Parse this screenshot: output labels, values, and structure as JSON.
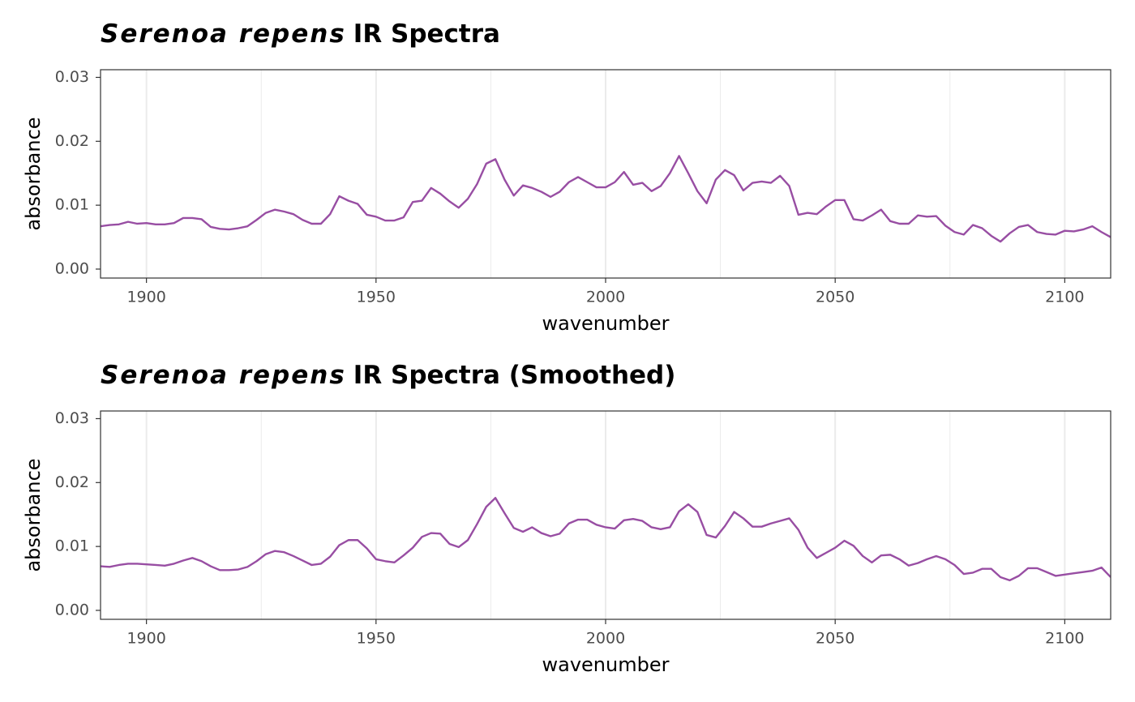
{
  "chart_data": [
    {
      "type": "line",
      "title": [
        "Serenoa repens",
        "IR Spectra"
      ],
      "x_label": "wavenumber",
      "y_label": "absorbance",
      "x": [
        1890,
        1892,
        1894,
        1896,
        1898,
        1900,
        1902,
        1904,
        1906,
        1908,
        1910,
        1912,
        1914,
        1916,
        1918,
        1920,
        1922,
        1924,
        1926,
        1928,
        1930,
        1932,
        1934,
        1936,
        1938,
        1940,
        1942,
        1944,
        1946,
        1948,
        1950,
        1952,
        1954,
        1956,
        1958,
        1960,
        1962,
        1964,
        1966,
        1968,
        1970,
        1972,
        1974,
        1976,
        1978,
        1980,
        1982,
        1984,
        1986,
        1988,
        1990,
        1992,
        1994,
        1996,
        1998,
        2000,
        2002,
        2004,
        2006,
        2008,
        2010,
        2012,
        2014,
        2016,
        2018,
        2020,
        2022,
        2024,
        2026,
        2028,
        2030,
        2032,
        2034,
        2036,
        2038,
        2040,
        2042,
        2044,
        2046,
        2048,
        2050,
        2052,
        2054,
        2056,
        2058,
        2060,
        2062,
        2064,
        2066,
        2068,
        2070,
        2072,
        2074,
        2076,
        2078,
        2080,
        2082,
        2084,
        2086,
        2088,
        2090,
        2092,
        2094,
        2096,
        2098,
        2100,
        2102,
        2104,
        2106,
        2108,
        2110
      ],
      "values": [
        0.0067,
        0.0069,
        0.007,
        0.0074,
        0.0071,
        0.0072,
        0.007,
        0.007,
        0.0072,
        0.008,
        0.008,
        0.0078,
        0.0066,
        0.0063,
        0.0062,
        0.0064,
        0.0067,
        0.0077,
        0.0088,
        0.0093,
        0.009,
        0.0086,
        0.0077,
        0.0071,
        0.0071,
        0.0086,
        0.0114,
        0.0107,
        0.0102,
        0.0085,
        0.0082,
        0.0076,
        0.0076,
        0.0081,
        0.0105,
        0.0107,
        0.0127,
        0.0118,
        0.0106,
        0.0096,
        0.011,
        0.0133,
        0.0165,
        0.0172,
        0.014,
        0.0115,
        0.0131,
        0.0127,
        0.0121,
        0.0113,
        0.0121,
        0.0136,
        0.0144,
        0.0136,
        0.0128,
        0.0128,
        0.0136,
        0.0152,
        0.0132,
        0.0135,
        0.0122,
        0.013,
        0.015,
        0.0177,
        0.015,
        0.0122,
        0.0103,
        0.014,
        0.0155,
        0.0147,
        0.0123,
        0.0135,
        0.0137,
        0.0135,
        0.0146,
        0.013,
        0.0085,
        0.0088,
        0.0086,
        0.0098,
        0.0108,
        0.0108,
        0.0078,
        0.0076,
        0.0084,
        0.0093,
        0.0075,
        0.0071,
        0.0071,
        0.0084,
        0.0082,
        0.0083,
        0.0068,
        0.0058,
        0.0054,
        0.0069,
        0.0064,
        0.0052,
        0.0043,
        0.0056,
        0.0066,
        0.0069,
        0.0058,
        0.0055,
        0.0054,
        0.006,
        0.0059,
        0.0062,
        0.0067,
        0.0058,
        0.005
      ],
      "color": "#984ea3",
      "xlim": [
        1890,
        2110
      ],
      "xticks": [
        1900,
        1950,
        2000,
        2050,
        2100
      ],
      "x_minor_grid": [
        1925,
        1975,
        2025,
        2075
      ],
      "ylim": [
        -0.0014,
        0.0312
      ],
      "yticks": [
        {
          "value": 0,
          "label": "0.00"
        },
        0.01,
        0.02,
        0.03
      ],
      "grid": true
    },
    {
      "type": "line",
      "title": [
        "Serenoa repens",
        "IR Spectra (Smoothed)"
      ],
      "x_label": "wavenumber",
      "y_label": "absorbance",
      "x": [
        1890,
        1892,
        1894,
        1896,
        1898,
        1900,
        1902,
        1904,
        1906,
        1908,
        1910,
        1912,
        1914,
        1916,
        1918,
        1920,
        1922,
        1924,
        1926,
        1928,
        1930,
        1932,
        1934,
        1936,
        1938,
        1940,
        1942,
        1944,
        1946,
        1948,
        1950,
        1952,
        1954,
        1956,
        1958,
        1960,
        1962,
        1964,
        1966,
        1968,
        1970,
        1972,
        1974,
        1976,
        1978,
        1980,
        1982,
        1984,
        1986,
        1988,
        1990,
        1992,
        1994,
        1996,
        1998,
        2000,
        2002,
        2004,
        2006,
        2008,
        2010,
        2012,
        2014,
        2016,
        2018,
        2020,
        2022,
        2024,
        2026,
        2028,
        2030,
        2032,
        2034,
        2036,
        2038,
        2040,
        2042,
        2044,
        2046,
        2048,
        2050,
        2052,
        2054,
        2056,
        2058,
        2060,
        2062,
        2064,
        2066,
        2068,
        2070,
        2072,
        2074,
        2076,
        2078,
        2080,
        2082,
        2084,
        2086,
        2088,
        2090,
        2092,
        2094,
        2096,
        2098,
        2100,
        2102,
        2104,
        2106,
        2108,
        2110
      ],
      "values": [
        0.0069,
        0.0068,
        0.0071,
        0.0073,
        0.0073,
        0.0072,
        0.0071,
        0.007,
        0.0073,
        0.0078,
        0.0082,
        0.0077,
        0.0069,
        0.0063,
        0.0063,
        0.0064,
        0.0068,
        0.0077,
        0.0088,
        0.0093,
        0.0091,
        0.0085,
        0.0078,
        0.0071,
        0.0073,
        0.0084,
        0.0102,
        0.011,
        0.011,
        0.0097,
        0.008,
        0.0077,
        0.0075,
        0.0086,
        0.0098,
        0.0115,
        0.0121,
        0.012,
        0.0104,
        0.0099,
        0.011,
        0.0135,
        0.0162,
        0.0176,
        0.0152,
        0.0129,
        0.0123,
        0.013,
        0.0121,
        0.0116,
        0.012,
        0.0136,
        0.0142,
        0.0142,
        0.0134,
        0.013,
        0.0128,
        0.0141,
        0.0143,
        0.014,
        0.013,
        0.0127,
        0.013,
        0.0155,
        0.0166,
        0.0154,
        0.0118,
        0.0114,
        0.0132,
        0.0154,
        0.0144,
        0.0131,
        0.0131,
        0.0136,
        0.014,
        0.0144,
        0.0126,
        0.0098,
        0.0082,
        0.009,
        0.0098,
        0.0109,
        0.0101,
        0.0085,
        0.0075,
        0.0086,
        0.0087,
        0.008,
        0.007,
        0.0074,
        0.008,
        0.0085,
        0.008,
        0.0071,
        0.0057,
        0.0059,
        0.0065,
        0.0065,
        0.0052,
        0.0047,
        0.0054,
        0.0066,
        0.0066,
        0.006,
        0.0054,
        0.0056,
        0.0058,
        0.006,
        0.0062,
        0.0067,
        0.0052
      ],
      "color": "#984ea3",
      "xlim": [
        1890,
        2110
      ],
      "xticks": [
        1900,
        1950,
        2000,
        2050,
        2100
      ],
      "x_minor_grid": [
        1925,
        1975,
        2025,
        2075
      ],
      "ylim": [
        -0.0014,
        0.0312
      ],
      "yticks": [
        {
          "value": 0,
          "label": "0.00"
        },
        0.01,
        0.02,
        0.03
      ],
      "grid": true
    }
  ]
}
